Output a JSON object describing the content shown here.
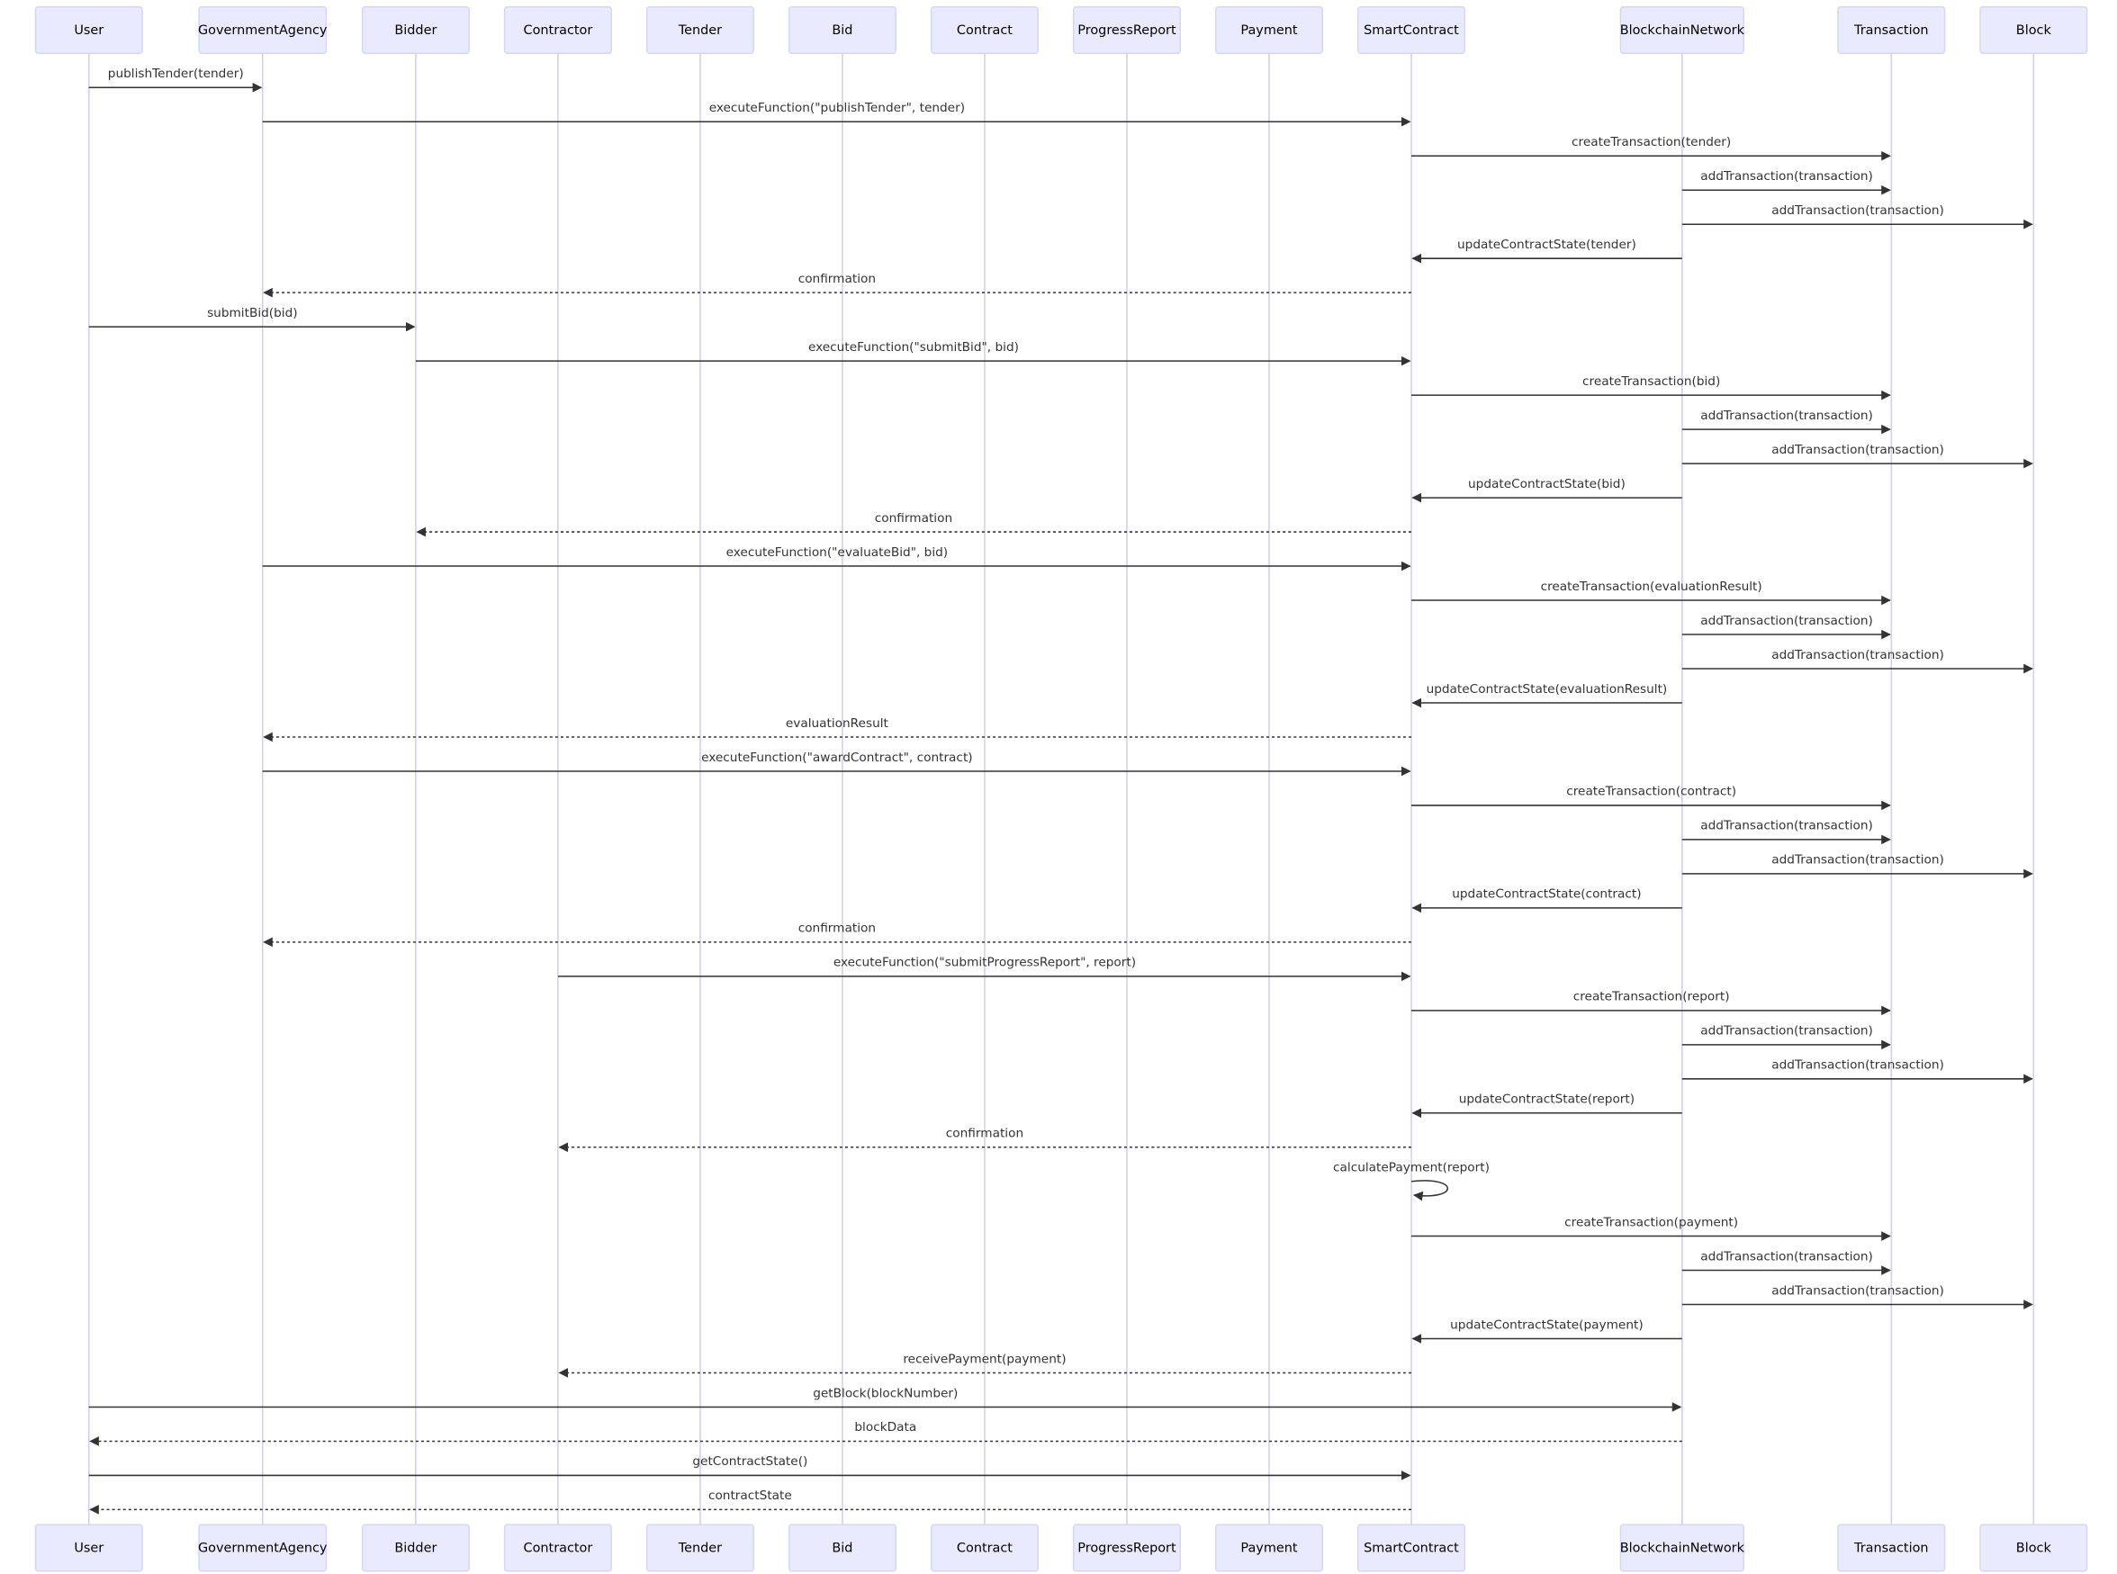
{
  "participants": [
    "User",
    "GovernmentAgency",
    "Bidder",
    "Contractor",
    "Tender",
    "Bid",
    "Contract",
    "ProgressReport",
    "Payment",
    "SmartContract",
    "BlockchainNetwork",
    "Transaction",
    "Block"
  ],
  "messages": [
    {
      "from": "User",
      "to": "GovernmentAgency",
      "label": "publishTender(tender)"
    },
    {
      "from": "GovernmentAgency",
      "to": "SmartContract",
      "label": "executeFunction(\"publishTender\", tender)"
    },
    {
      "from": "SmartContract",
      "to": "Transaction",
      "label": "createTransaction(tender)"
    },
    {
      "from": "BlockchainNetwork",
      "to": "Transaction",
      "label": "addTransaction(transaction)"
    },
    {
      "from": "BlockchainNetwork",
      "to": "Block",
      "label": "addTransaction(transaction)"
    },
    {
      "from": "BlockchainNetwork",
      "to": "SmartContract",
      "label": "updateContractState(tender)"
    },
    {
      "from": "SmartContract",
      "to": "GovernmentAgency",
      "label": "confirmation",
      "dashed": true
    },
    {
      "from": "User",
      "to": "Bidder",
      "label": "submitBid(bid)"
    },
    {
      "from": "Bidder",
      "to": "SmartContract",
      "label": "executeFunction(\"submitBid\", bid)"
    },
    {
      "from": "SmartContract",
      "to": "Transaction",
      "label": "createTransaction(bid)"
    },
    {
      "from": "BlockchainNetwork",
      "to": "Transaction",
      "label": "addTransaction(transaction)"
    },
    {
      "from": "BlockchainNetwork",
      "to": "Block",
      "label": "addTransaction(transaction)"
    },
    {
      "from": "BlockchainNetwork",
      "to": "SmartContract",
      "label": "updateContractState(bid)"
    },
    {
      "from": "SmartContract",
      "to": "Bidder",
      "label": "confirmation",
      "dashed": true
    },
    {
      "from": "GovernmentAgency",
      "to": "SmartContract",
      "label": "executeFunction(\"evaluateBid\", bid)"
    },
    {
      "from": "SmartContract",
      "to": "Transaction",
      "label": "createTransaction(evaluationResult)"
    },
    {
      "from": "BlockchainNetwork",
      "to": "Transaction",
      "label": "addTransaction(transaction)"
    },
    {
      "from": "BlockchainNetwork",
      "to": "Block",
      "label": "addTransaction(transaction)"
    },
    {
      "from": "BlockchainNetwork",
      "to": "SmartContract",
      "label": "updateContractState(evaluationResult)"
    },
    {
      "from": "SmartContract",
      "to": "GovernmentAgency",
      "label": "evaluationResult",
      "dashed": true
    },
    {
      "from": "GovernmentAgency",
      "to": "SmartContract",
      "label": "executeFunction(\"awardContract\", contract)"
    },
    {
      "from": "SmartContract",
      "to": "Transaction",
      "label": "createTransaction(contract)"
    },
    {
      "from": "BlockchainNetwork",
      "to": "Transaction",
      "label": "addTransaction(transaction)"
    },
    {
      "from": "BlockchainNetwork",
      "to": "Block",
      "label": "addTransaction(transaction)"
    },
    {
      "from": "BlockchainNetwork",
      "to": "SmartContract",
      "label": "updateContractState(contract)"
    },
    {
      "from": "SmartContract",
      "to": "GovernmentAgency",
      "label": "confirmation",
      "dashed": true
    },
    {
      "from": "Contractor",
      "to": "SmartContract",
      "label": "executeFunction(\"submitProgressReport\", report)"
    },
    {
      "from": "SmartContract",
      "to": "Transaction",
      "label": "createTransaction(report)"
    },
    {
      "from": "BlockchainNetwork",
      "to": "Transaction",
      "label": "addTransaction(transaction)"
    },
    {
      "from": "BlockchainNetwork",
      "to": "Block",
      "label": "addTransaction(transaction)"
    },
    {
      "from": "BlockchainNetwork",
      "to": "SmartContract",
      "label": "updateContractState(report)"
    },
    {
      "from": "SmartContract",
      "to": "Contractor",
      "label": "confirmation",
      "dashed": true
    },
    {
      "from": "SmartContract",
      "to": "SmartContract",
      "label": "calculatePayment(report)"
    },
    {
      "from": "SmartContract",
      "to": "Transaction",
      "label": "createTransaction(payment)"
    },
    {
      "from": "BlockchainNetwork",
      "to": "Transaction",
      "label": "addTransaction(transaction)"
    },
    {
      "from": "BlockchainNetwork",
      "to": "Block",
      "label": "addTransaction(transaction)"
    },
    {
      "from": "BlockchainNetwork",
      "to": "SmartContract",
      "label": "updateContractState(payment)"
    },
    {
      "from": "SmartContract",
      "to": "Contractor",
      "label": "receivePayment(payment)",
      "dashed": true
    },
    {
      "from": "User",
      "to": "BlockchainNetwork",
      "label": "getBlock(blockNumber)"
    },
    {
      "from": "BlockchainNetwork",
      "to": "User",
      "label": "blockData",
      "dashed": true
    },
    {
      "from": "User",
      "to": "SmartContract",
      "label": "getContractState()"
    },
    {
      "from": "SmartContract",
      "to": "User",
      "label": "contractState",
      "dashed": true
    }
  ]
}
